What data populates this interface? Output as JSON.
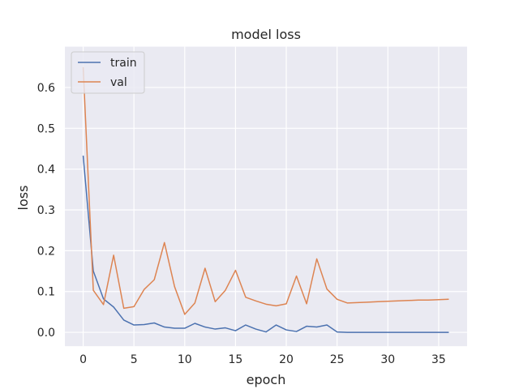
{
  "chart_data": {
    "type": "line",
    "title": "model loss",
    "xlabel": "epoch",
    "ylabel": "loss",
    "xlim": [
      -1.8,
      37.8
    ],
    "ylim": [
      -0.034,
      0.7
    ],
    "xticks": [
      0,
      5,
      10,
      15,
      20,
      25,
      30,
      35
    ],
    "yticks": [
      0.0,
      0.1,
      0.2,
      0.3,
      0.4,
      0.5,
      0.6
    ],
    "ytick_labels": [
      "0.0",
      "0.1",
      "0.2",
      "0.3",
      "0.4",
      "0.5",
      "0.6"
    ],
    "grid": true,
    "legend_position": "top-left",
    "x": [
      0,
      1,
      2,
      3,
      4,
      5,
      6,
      7,
      8,
      9,
      10,
      11,
      12,
      13,
      14,
      15,
      16,
      17,
      18,
      19,
      20,
      21,
      22,
      23,
      24,
      25,
      26,
      27,
      28,
      29,
      30,
      31,
      32,
      33,
      34,
      35,
      36
    ],
    "series": [
      {
        "name": "train",
        "color": "#4c72b0",
        "values": [
          0.433,
          0.15,
          0.082,
          0.062,
          0.03,
          0.018,
          0.019,
          0.023,
          0.013,
          0.01,
          0.01,
          0.022,
          0.013,
          0.008,
          0.011,
          0.004,
          0.018,
          0.008,
          0.001,
          0.018,
          0.006,
          0.002,
          0.015,
          0.013,
          0.018,
          0.001,
          0.0,
          0.0,
          0.0,
          0.0,
          0.0,
          0.0,
          0.0,
          0.0,
          0.0,
          0.0,
          0.0
        ]
      },
      {
        "name": "val",
        "color": "#dd8452",
        "values": [
          0.65,
          0.103,
          0.068,
          0.189,
          0.059,
          0.063,
          0.105,
          0.129,
          0.22,
          0.112,
          0.044,
          0.072,
          0.157,
          0.075,
          0.103,
          0.152,
          0.086,
          0.077,
          0.069,
          0.065,
          0.07,
          0.138,
          0.07,
          0.18,
          0.106,
          0.081,
          0.072,
          0.073,
          0.074,
          0.075,
          0.076,
          0.077,
          0.078,
          0.079,
          0.079,
          0.08,
          0.081
        ]
      }
    ],
    "colors": {
      "plot_background": "#eaeaf2",
      "grid": "#ffffff",
      "text": "#262626"
    }
  }
}
